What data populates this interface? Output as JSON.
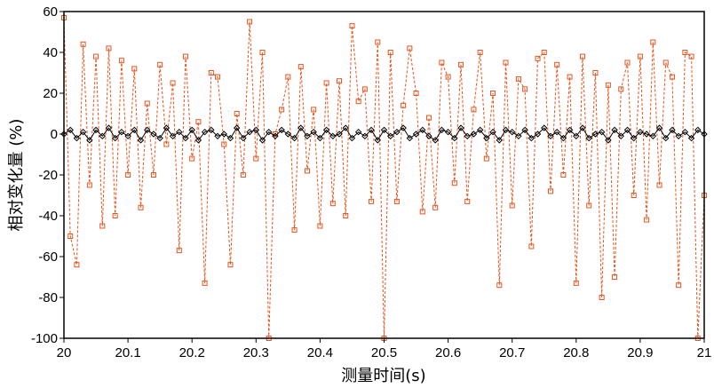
{
  "chart_data": {
    "type": "line",
    "title": "",
    "xlabel": "测量时间(s)",
    "ylabel": "相对变化量 (%)",
    "xlim": [
      20,
      21
    ],
    "ylim": [
      -100,
      60
    ],
    "x_ticks": [
      "20",
      "20.1",
      "20.2",
      "20.3",
      "20.4",
      "20.5",
      "20.6",
      "20.7",
      "20.8",
      "20.9",
      "21"
    ],
    "y_ticks": [
      "60",
      "40",
      "20",
      "0",
      "-20",
      "-40",
      "-60",
      "-80",
      "-100"
    ],
    "grid": false,
    "legend": "none",
    "series": [
      {
        "color": "#e8541e",
        "marker": "open-square",
        "line": "dashed",
        "x": [
          20.0,
          20.01,
          20.02,
          20.03,
          20.04,
          20.05,
          20.06,
          20.07,
          20.08,
          20.09,
          20.1,
          20.11,
          20.12,
          20.13,
          20.14,
          20.15,
          20.16,
          20.17,
          20.18,
          20.19,
          20.2,
          20.21,
          20.22,
          20.23,
          20.24,
          20.25,
          20.26,
          20.27,
          20.28,
          20.29,
          20.3,
          20.31,
          20.32,
          20.33,
          20.34,
          20.35,
          20.36,
          20.37,
          20.38,
          20.39,
          20.4,
          20.41,
          20.42,
          20.43,
          20.44,
          20.45,
          20.46,
          20.47,
          20.48,
          20.49,
          20.5,
          20.51,
          20.52,
          20.53,
          20.54,
          20.55,
          20.56,
          20.57,
          20.58,
          20.59,
          20.6,
          20.61,
          20.62,
          20.63,
          20.64,
          20.65,
          20.66,
          20.67,
          20.68,
          20.69,
          20.7,
          20.71,
          20.72,
          20.73,
          20.74,
          20.75,
          20.76,
          20.77,
          20.78,
          20.79,
          20.8,
          20.81,
          20.82,
          20.83,
          20.84,
          20.85,
          20.86,
          20.87,
          20.88,
          20.89,
          20.9,
          20.91,
          20.92,
          20.93,
          20.94,
          20.95,
          20.96,
          20.97,
          20.98,
          20.99,
          21.0
        ],
        "y": [
          57,
          -50,
          -64,
          44,
          -25,
          38,
          -45,
          42,
          -40,
          36,
          -20,
          32,
          -36,
          15,
          -20,
          34,
          -5,
          25,
          -57,
          38,
          -12,
          6,
          -73,
          30,
          28,
          -5,
          -64,
          10,
          -20,
          55,
          -12,
          40,
          -100,
          0,
          12,
          28,
          -47,
          33,
          -18,
          12,
          -45,
          25,
          -34,
          26,
          -40,
          53,
          16,
          22,
          -33,
          45,
          -100,
          40,
          -33,
          14,
          42,
          20,
          -38,
          8,
          -36,
          35,
          28,
          -24,
          34,
          -33,
          12,
          40,
          -12,
          20,
          -74,
          35,
          -35,
          27,
          22,
          -55,
          37,
          40,
          -28,
          34,
          -20,
          28,
          -73,
          38,
          -35,
          30,
          -80,
          24,
          -70,
          22,
          35,
          -30,
          38,
          -42,
          45,
          -25,
          35,
          28,
          -74,
          40,
          38,
          -100,
          -30
        ]
      },
      {
        "color": "#000000",
        "marker": "open-diamond",
        "line": "solid",
        "x": [
          20.0,
          20.01,
          20.02,
          20.03,
          20.04,
          20.05,
          20.06,
          20.07,
          20.08,
          20.09,
          20.1,
          20.11,
          20.12,
          20.13,
          20.14,
          20.15,
          20.16,
          20.17,
          20.18,
          20.19,
          20.2,
          20.21,
          20.22,
          20.23,
          20.24,
          20.25,
          20.26,
          20.27,
          20.28,
          20.29,
          20.3,
          20.31,
          20.32,
          20.33,
          20.34,
          20.35,
          20.36,
          20.37,
          20.38,
          20.39,
          20.4,
          20.41,
          20.42,
          20.43,
          20.44,
          20.45,
          20.46,
          20.47,
          20.48,
          20.49,
          20.5,
          20.51,
          20.52,
          20.53,
          20.54,
          20.55,
          20.56,
          20.57,
          20.58,
          20.59,
          20.6,
          20.61,
          20.62,
          20.63,
          20.64,
          20.65,
          20.66,
          20.67,
          20.68,
          20.69,
          20.7,
          20.71,
          20.72,
          20.73,
          20.74,
          20.75,
          20.76,
          20.77,
          20.78,
          20.79,
          20.8,
          20.81,
          20.82,
          20.83,
          20.84,
          20.85,
          20.86,
          20.87,
          20.88,
          20.89,
          20.9,
          20.91,
          20.92,
          20.93,
          20.94,
          20.95,
          20.96,
          20.97,
          20.98,
          20.99,
          21.0
        ],
        "y": [
          0,
          2,
          -2,
          1,
          -3,
          2,
          -1,
          3,
          -2,
          1,
          -1,
          2,
          -3,
          2,
          0,
          -2,
          3,
          -1,
          1,
          -2,
          2,
          -3,
          1,
          2,
          -1,
          0,
          -2,
          3,
          -2,
          1,
          2,
          -3,
          1,
          -1,
          2,
          0,
          -2,
          3,
          -1,
          1,
          -2,
          2,
          -1,
          0,
          3,
          -2,
          1,
          -1,
          2,
          -3,
          2,
          -1,
          1,
          3,
          -2,
          0,
          2,
          -1,
          -3,
          2,
          1,
          -2,
          3,
          -1,
          0,
          2,
          -2,
          1,
          -3,
          2,
          1,
          -1,
          2,
          -2,
          0,
          3,
          -1,
          1,
          -2,
          2,
          -1,
          3,
          -2,
          0,
          1,
          -3,
          2,
          -1,
          2,
          -2,
          1,
          0,
          -1,
          3,
          -2,
          2,
          -1,
          1,
          -2,
          2,
          0
        ]
      }
    ]
  }
}
